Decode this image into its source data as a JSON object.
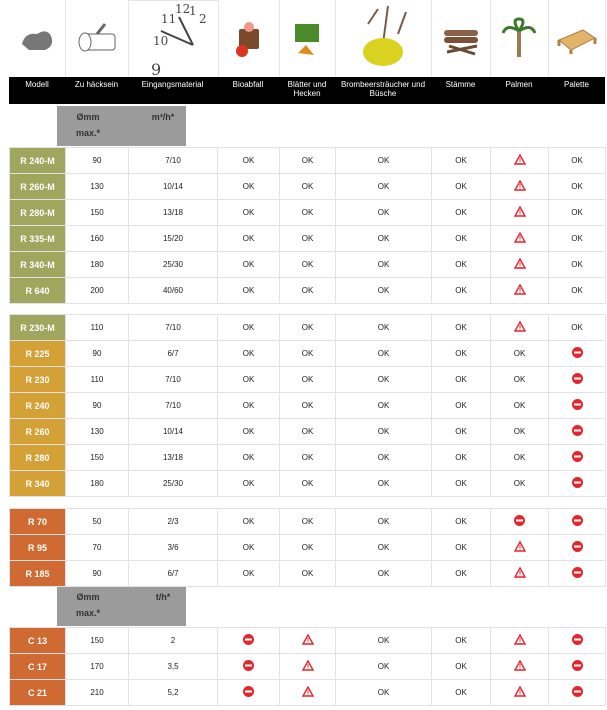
{
  "header": {
    "columns": [
      "Modell",
      "Zu häcksein",
      "Eingangsmaterial",
      "Bioabfall",
      "Blätter und Hecken",
      "Brombeersträucher und Büsche",
      "Stämme",
      "Palmen",
      "Palette"
    ]
  },
  "images": [
    "shredder-icon",
    "log-icon",
    "clock-icon",
    "biowaste-icon",
    "hedge-leaves-icon",
    "bush-icon",
    "logs-icon",
    "palm-icon",
    "pallet-icon"
  ],
  "clock_numbers": [
    "9",
    "10",
    "11",
    "12",
    "1",
    "2"
  ],
  "colors": {
    "olive": "#a0a65e",
    "gold": "#d4a137",
    "orange": "#cf6a33",
    "warn": "#e3262e",
    "gray": "#9b9b9b"
  },
  "subheaders": [
    {
      "diameter": "Ømm",
      "max": "max.*",
      "rate_unit": "m³/h*"
    },
    {
      "diameter": "Ømm",
      "max": "max.*",
      "rate_unit": "t/h*"
    }
  ],
  "groups": [
    {
      "color": "olive",
      "rows": [
        [
          "R 240-M",
          "90",
          "7/10",
          "OK",
          "OK",
          "OK",
          "OK",
          "warn",
          "OK"
        ],
        [
          "R 260-M",
          "130",
          "10/14",
          "OK",
          "OK",
          "OK",
          "OK",
          "warn",
          "OK"
        ],
        [
          "R 280-M",
          "150",
          "13/18",
          "OK",
          "OK",
          "OK",
          "OK",
          "warn",
          "OK"
        ],
        [
          "R 335-M",
          "160",
          "15/20",
          "OK",
          "OK",
          "OK",
          "OK",
          "warn",
          "OK"
        ],
        [
          "R 340-M",
          "180",
          "25/30",
          "OK",
          "OK",
          "OK",
          "OK",
          "warn",
          "OK"
        ],
        [
          "R 640",
          "200",
          "40/60",
          "OK",
          "OK",
          "OK",
          "OK",
          "warn",
          "OK"
        ]
      ]
    },
    {
      "color": "mixed",
      "rows": [
        [
          "R 230-M",
          "110",
          "7/10",
          "OK",
          "OK",
          "OK",
          "OK",
          "warn",
          "OK"
        ],
        [
          "R 225",
          "90",
          "6/7",
          "OK",
          "OK",
          "OK",
          "OK",
          "OK",
          "no"
        ],
        [
          "R 230",
          "110",
          "7/10",
          "OK",
          "OK",
          "OK",
          "OK",
          "OK",
          "no"
        ],
        [
          "R 240",
          "90",
          "7/10",
          "OK",
          "OK",
          "OK",
          "OK",
          "OK",
          "no"
        ],
        [
          "R 260",
          "130",
          "10/14",
          "OK",
          "OK",
          "OK",
          "OK",
          "OK",
          "no"
        ],
        [
          "R 280",
          "150",
          "13/18",
          "OK",
          "OK",
          "OK",
          "OK",
          "OK",
          "no"
        ],
        [
          "R 340",
          "180",
          "25/30",
          "OK",
          "OK",
          "OK",
          "OK",
          "OK",
          "no"
        ]
      ]
    },
    {
      "color": "orange",
      "rows": [
        [
          "R 70",
          "50",
          "2/3",
          "OK",
          "OK",
          "OK",
          "OK",
          "no",
          "no"
        ],
        [
          "R 95",
          "70",
          "3/6",
          "OK",
          "OK",
          "OK",
          "OK",
          "warn",
          "no"
        ],
        [
          "R 185",
          "90",
          "6/7",
          "OK",
          "OK",
          "OK",
          "OK",
          "warn",
          "no"
        ]
      ]
    },
    {
      "color": "orange",
      "rows": [
        [
          "C 13",
          "150",
          "2",
          "no",
          "warn",
          "OK",
          "OK",
          "warn",
          "no"
        ],
        [
          "C 17",
          "170",
          "3,5",
          "no",
          "warn",
          "OK",
          "OK",
          "warn",
          "no"
        ],
        [
          "C 21",
          "210",
          "5,2",
          "no",
          "warn",
          "OK",
          "OK",
          "warn",
          "no"
        ]
      ]
    }
  ]
}
